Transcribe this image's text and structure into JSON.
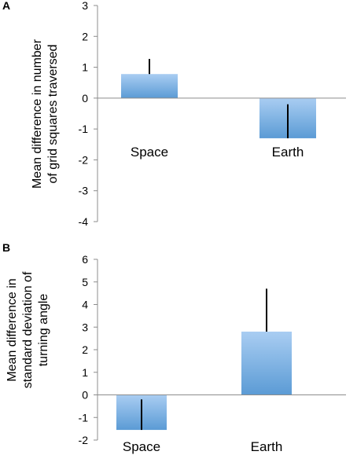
{
  "chart_data": [
    {
      "panel": "A",
      "type": "bar",
      "categories": [
        "Space",
        "Earth"
      ],
      "values": [
        0.78,
        -1.3
      ],
      "error_tops": [
        1.27,
        -0.2
      ],
      "ylabel": [
        "Mean difference in number",
        "of grid squares traversed"
      ],
      "ylim": [
        -4,
        3
      ],
      "yticks": [
        -4,
        -3,
        -2,
        -1,
        0,
        1,
        2,
        3
      ],
      "grid": false,
      "bar_color": "#5b9bd5",
      "bar_color_light": "#a9cdf2"
    },
    {
      "panel": "B",
      "type": "bar",
      "categories": [
        "Space",
        "Earth"
      ],
      "values": [
        -1.55,
        2.8
      ],
      "error_tops": [
        -0.2,
        4.7
      ],
      "ylabel": [
        "Mean difference in",
        "standard deviation of",
        "turning angle"
      ],
      "ylim": [
        -2,
        6
      ],
      "yticks": [
        -2,
        -1,
        0,
        1,
        2,
        3,
        4,
        5,
        6
      ],
      "grid": false,
      "bar_color": "#5b9bd5",
      "bar_color_light": "#a9cdf2"
    }
  ]
}
